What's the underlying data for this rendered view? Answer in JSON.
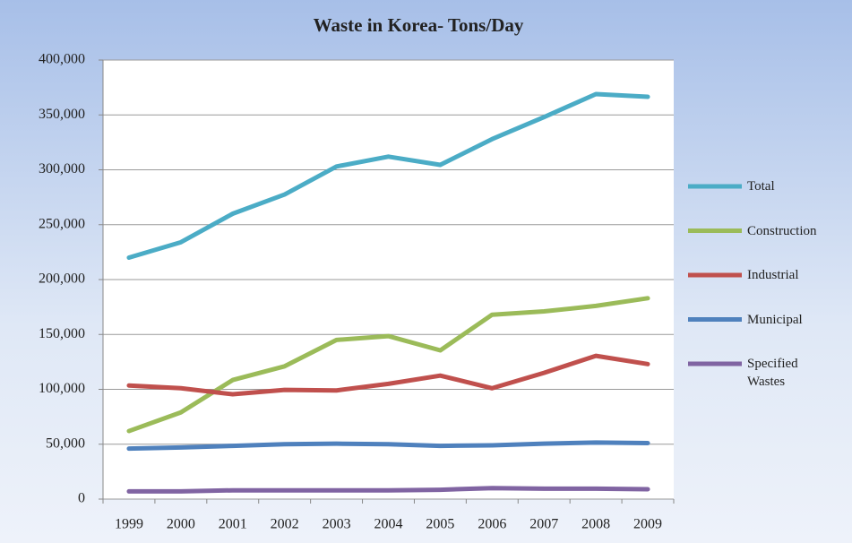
{
  "chart_data": {
    "type": "line",
    "title": "Waste in Korea- Tons/Day",
    "categories": [
      "1999",
      "2000",
      "2001",
      "2002",
      "2003",
      "2004",
      "2005",
      "2006",
      "2007",
      "2008",
      "2009"
    ],
    "series": [
      {
        "name": "Total",
        "color": "#4bacc6",
        "values": [
          220000,
          234000,
          260000,
          277500,
          303000,
          312000,
          304500,
          328000,
          348000,
          369000,
          366500
        ]
      },
      {
        "name": "Construction",
        "color": "#9bbb59",
        "values": [
          62000,
          79000,
          108500,
          121000,
          145000,
          148500,
          135500,
          168000,
          171000,
          176000,
          183000
        ]
      },
      {
        "name": "Industrial",
        "color": "#c0504d",
        "values": [
          103500,
          101000,
          95500,
          99500,
          99000,
          105000,
          112500,
          101000,
          115000,
          130500,
          123000
        ]
      },
      {
        "name": "Municipal",
        "color": "#4f81bd",
        "values": [
          46000,
          47000,
          48500,
          50000,
          50500,
          50000,
          48500,
          49000,
          50500,
          51500,
          51000
        ]
      },
      {
        "name": "Specified Wastes",
        "color": "#8064a2",
        "values": [
          7000,
          7000,
          8000,
          8000,
          8000,
          8000,
          8500,
          10000,
          9500,
          9500,
          9000
        ]
      }
    ],
    "ylim": [
      0,
      400000
    ],
    "yticks": [
      0,
      {
        "value": 50000,
        "label": "50,000"
      },
      {
        "value": 100000,
        "label": "100,000"
      },
      {
        "value": 150000,
        "label": "150,000"
      },
      {
        "value": 200000,
        "label": "200,000"
      },
      {
        "value": 250000,
        "label": "250,000"
      },
      {
        "value": 300000,
        "label": "300,000"
      },
      {
        "value": 350000,
        "label": "350,000"
      },
      {
        "value": 400000,
        "label": "400,000"
      }
    ],
    "grid": true,
    "legend": "right"
  }
}
